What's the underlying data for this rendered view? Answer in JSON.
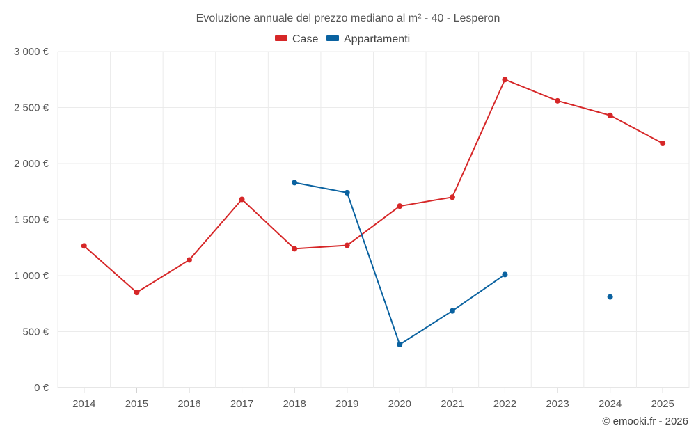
{
  "chart_data": {
    "type": "line",
    "title": "Evoluzione annuale del prezzo mediano al m² - 40 - Lesperon",
    "categories": [
      "2014",
      "2015",
      "2016",
      "2017",
      "2018",
      "2019",
      "2020",
      "2021",
      "2022",
      "2023",
      "2024",
      "2025"
    ],
    "series": [
      {
        "name": "Case",
        "color": "#d62728",
        "values": [
          1265,
          850,
          1140,
          1680,
          1240,
          1270,
          1620,
          1700,
          2750,
          2560,
          2430,
          2180
        ]
      },
      {
        "name": "Appartamenti",
        "color": "#0a62a0",
        "values": [
          null,
          null,
          null,
          null,
          1830,
          1740,
          385,
          685,
          1010,
          null,
          810,
          null
        ]
      }
    ],
    "y_ticks": [
      "0 €",
      "500 €",
      "1 000 €",
      "1 500 €",
      "2 000 €",
      "2 500 €",
      "3 000 €"
    ],
    "ylim": [
      0,
      3000
    ],
    "xlabel": "",
    "ylabel": "",
    "legend_position": "top-center",
    "grid": true
  },
  "credit": "© emooki.fr - 2026"
}
